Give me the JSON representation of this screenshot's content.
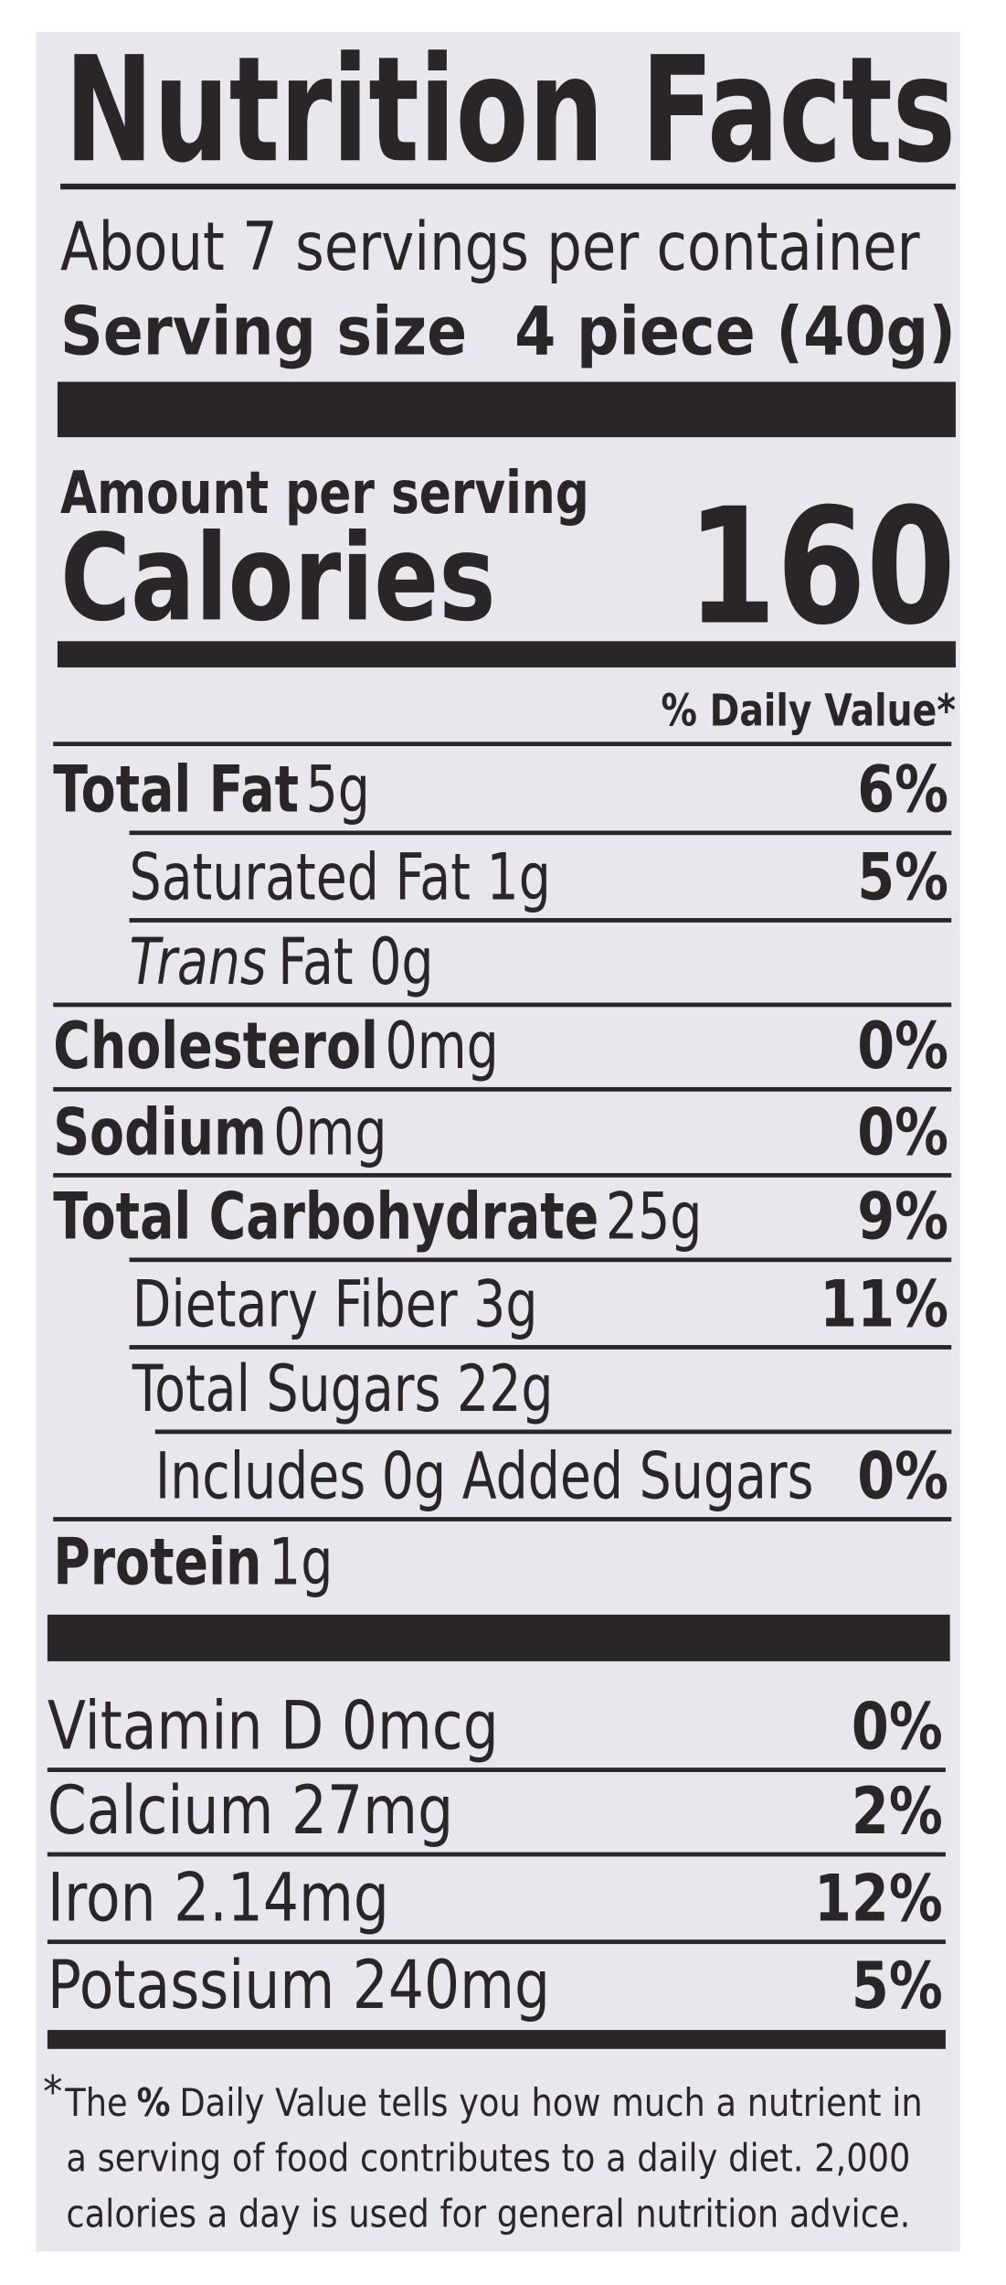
{
  "header": {
    "title": "Nutrition Facts",
    "servings": "About 7 servings per container",
    "serving_size_label": "Serving size",
    "serving_size": "4 piece (40g)"
  },
  "calories": {
    "amount_label": "Amount per serving",
    "label": "Calories",
    "value": "160"
  },
  "dv_header": "% Daily Value*",
  "nutrients": [
    {
      "name": "Total Fat",
      "amount": "5g",
      "dv": "6%",
      "bold": true,
      "indent": 0
    },
    {
      "name": "Saturated Fat 1g",
      "dv": "5%",
      "indent": 1
    },
    {
      "name_italic": "Trans",
      "name": "Fat 0g",
      "indent": 1
    },
    {
      "name": "Cholesterol",
      "amount": "0mg",
      "dv": "0%",
      "bold": true,
      "indent": 0
    },
    {
      "name": "Sodium",
      "amount": "0mg",
      "dv": "0%",
      "bold": true,
      "indent": 0
    },
    {
      "name": "Total Carbohydrate",
      "amount": "25g",
      "dv": "9%",
      "bold": true,
      "indent": 0
    },
    {
      "name": "Dietary Fiber 3g",
      "dv": "11%",
      "indent": 1
    },
    {
      "name": "Total Sugars 22g",
      "indent": 1
    },
    {
      "name": "Includes 0g Added Sugars",
      "dv": "0%",
      "indent": 2
    },
    {
      "name": "Protein",
      "amount": "1g",
      "bold": true,
      "indent": 0
    }
  ],
  "vitamins": [
    {
      "name": "Vitamin D 0mcg",
      "dv": "0%"
    },
    {
      "name": "Calcium 27mg",
      "dv": "2%"
    },
    {
      "name": "Iron 2.14mg",
      "dv": "12%"
    },
    {
      "name": "Potassium 240mg",
      "dv": "5%"
    }
  ],
  "footnote": {
    "asterisk": "*",
    "start": "The",
    "percent": "%",
    "end": "Daily Value tells you how much a nutrient in",
    "lines": [
      "a serving of food contributes to a daily diet. 2,000",
      "calories a day is used for general nutrition advice."
    ]
  }
}
